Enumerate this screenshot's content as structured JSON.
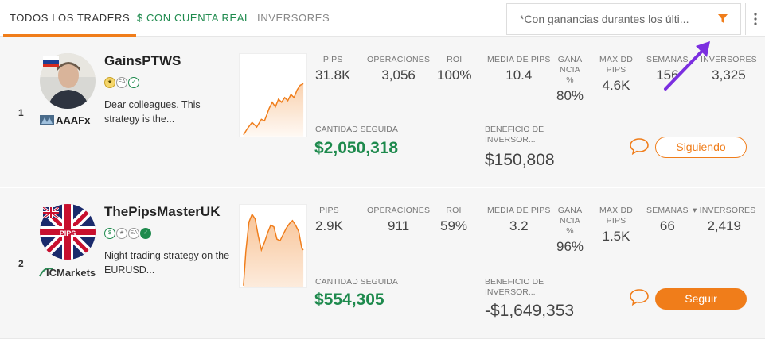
{
  "tabs": [
    {
      "label": "TODOS LOS TRADERS",
      "active": true
    },
    {
      "label": "$ CON CUENTA REAL",
      "active": false
    },
    {
      "label": "INVERSORES",
      "active": false
    }
  ],
  "search": {
    "placeholder": "*Con ganancias durantes los últi..."
  },
  "icons": {
    "filter": "funnel-icon",
    "more": "vertical-dots-icon",
    "chat": "chat-bubble-icon"
  },
  "colors": {
    "accent": "#f07d1a",
    "positive": "#1e8a4d",
    "annotation_arrow": "#7b2fe0"
  },
  "column_labels": {
    "pips": "PIPS",
    "operations": "OPERACIONES",
    "roi": "ROI",
    "avg_pips": "MEDIA DE PIPS",
    "win_line1": "GANA",
    "win_line2": "NCIA",
    "win_line3": "%",
    "maxdd_line1": "MAX DD",
    "maxdd_line2": "PIPS",
    "weeks": "SEMANAS",
    "investors": "INVERSORES",
    "investors_sorted": "▾ INVERSORES",
    "amount_followed": "CANTIDAD SEGUIDA",
    "investor_profit_line1": "BENEFICIO DE",
    "investor_profit_line2": "INVERSOR..."
  },
  "traders": [
    {
      "rank": "1",
      "name": "GainsPTWS",
      "broker": "AAAFx",
      "flag": "Russia",
      "description": "Dear colleagues. This strategy is the...",
      "pips": "31.8K",
      "operations": "3,056",
      "roi": "100%",
      "avg_pips": "10.4",
      "win_pct": "80%",
      "max_dd": "4.6K",
      "weeks": "156",
      "investors": "3,325",
      "amount_followed": "$2,050,318",
      "investor_profit": "$150,808",
      "button": "Siguiendo",
      "badges": [
        "medal",
        "EA",
        "check"
      ]
    },
    {
      "rank": "2",
      "name": "ThePipsMasterUK",
      "broker": "ICMarkets",
      "flag": "United Kingdom",
      "description": "Night trading strategy on the EURUSD...",
      "pips": "2.9K",
      "operations": "911",
      "roi": "59%",
      "avg_pips": "3.2",
      "win_pct": "96%",
      "max_dd": "1.5K",
      "weeks": "66",
      "investors": "2,419",
      "amount_followed": "$554,305",
      "investor_profit": "-$1,649,353",
      "button": "Seguir",
      "badges": [
        "dollar",
        "star",
        "EA",
        "check"
      ]
    }
  ]
}
